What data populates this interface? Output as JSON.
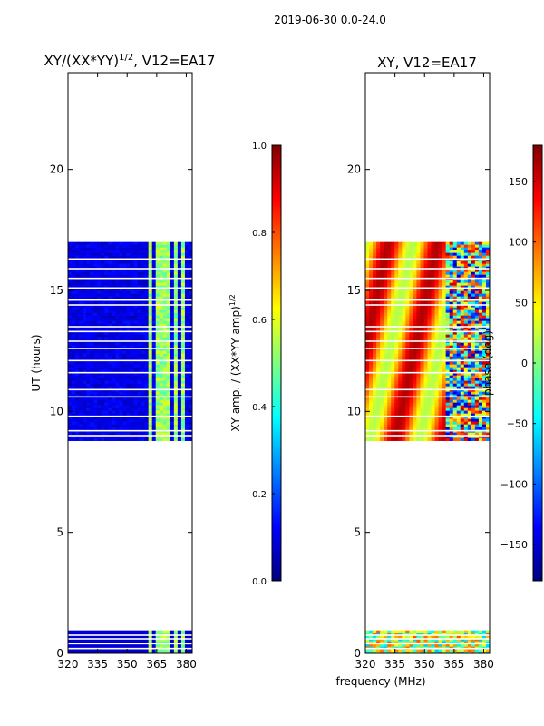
{
  "suptitle": "2019-06-30 0.0-24.0",
  "chart_data": [
    {
      "type": "heatmap",
      "title": "XY/(XX*YY)^1/2, V12=EA17",
      "title_main": "XY/(XX*YY)",
      "title_sup": "1/2",
      "title_tail": ", V12=EA17",
      "xlabel": "",
      "ylabel": "UT (hours)",
      "xlim": [
        320,
        383
      ],
      "ylim": [
        0,
        24
      ],
      "xticks": [
        320,
        335,
        350,
        365,
        380
      ],
      "yticks": [
        0,
        5,
        10,
        15,
        20
      ],
      "data_blocks_hours": [
        [
          0.0,
          0.95
        ],
        [
          8.8,
          17.0
        ]
      ],
      "gap_lines_hours": [
        0.2,
        0.4,
        0.6,
        0.75,
        9.0,
        9.2,
        9.8,
        10.6,
        10.9,
        11.6,
        12.1,
        12.6,
        12.9,
        13.3,
        13.5,
        14.4,
        14.6,
        15.1,
        15.5,
        15.9,
        16.3
      ],
      "high_value_columns_mhz": [
        [
          360,
          362
        ],
        [
          364,
          368
        ],
        [
          369,
          371
        ],
        [
          373,
          376
        ],
        [
          377,
          379
        ]
      ],
      "colorbar": {
        "label_main": "XY amp. / (XX*YY amp)",
        "label_sup": "1/2",
        "min": 0.0,
        "max": 1.0,
        "ticks": [
          "0.0",
          "0.2",
          "0.4",
          "0.6",
          "0.8",
          "1.0"
        ],
        "colormap": "jet"
      }
    },
    {
      "type": "heatmap",
      "title": "XY, V12=EA17",
      "xlabel": "frequency (MHz)",
      "ylabel": "",
      "xlim": [
        320,
        383
      ],
      "ylim": [
        0,
        24
      ],
      "xticks": [
        320,
        335,
        350,
        365,
        380
      ],
      "yticks": [
        0,
        5,
        10,
        15,
        20
      ],
      "data_blocks_hours": [
        [
          0.0,
          0.95
        ],
        [
          8.8,
          17.0
        ]
      ],
      "gap_lines_hours": [
        0.2,
        0.4,
        0.6,
        0.75,
        9.0,
        9.2,
        9.8,
        10.6,
        10.9,
        11.6,
        12.1,
        12.6,
        12.9,
        13.3,
        13.5,
        14.4,
        14.6,
        15.1,
        15.5,
        15.9,
        16.3
      ],
      "colorbar": {
        "label": "phase (deg)",
        "min": -180,
        "max": 180,
        "ticks": [
          "−150",
          "−100",
          "−50",
          "0",
          "50",
          "100",
          "150"
        ],
        "colormap": "jet"
      }
    }
  ],
  "jet_stops": [
    "#00007f",
    "#0000ff",
    "#007fff",
    "#00ffff",
    "#7fff7f",
    "#ffff00",
    "#ff7f00",
    "#ff0000",
    "#7f0000"
  ]
}
